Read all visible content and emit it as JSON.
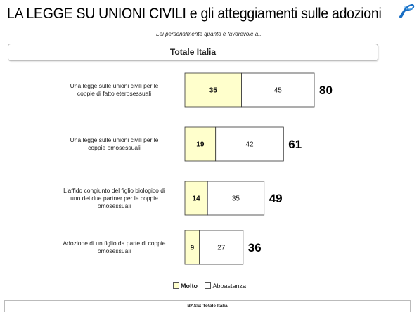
{
  "title": "LA LEGGE SU UNIONI CIVILI e gli atteggiamenti sulle adozioni",
  "subtitle": "Lei personalmente quanto è favorevole a...",
  "header": "Totale Italia",
  "base_note": "BASE: Totale Italia",
  "colors": {
    "molto": "#ffffcc",
    "abbastanza": "#ffffff",
    "border": "#333333"
  },
  "logo_icon": "blue-swirl-logo-icon",
  "chart_data": {
    "type": "bar",
    "orientation": "horizontal",
    "stacked": true,
    "categories": [
      "Una legge sulle unioni civili per le coppie di fatto eterosessuali",
      "Una legge sulle unioni civili per le coppie omosessuali",
      "L'affido congiunto del figlio biologico di uno dei due partner per le coppie omosessuali",
      "Adozione di un figlio da parte di coppie omosessuali"
    ],
    "category_lines": [
      [
        "Una legge sulle unioni civili per le",
        "coppie di fatto eterosessuali"
      ],
      [
        "Una legge sulle unioni civili per le",
        "coppie omosessuali"
      ],
      [
        "L'affido congiunto del figlio biologico di",
        "uno dei due partner per le coppie",
        "omosessuali"
      ],
      [
        "Adozione di un figlio da parte di coppie",
        "omosessuali"
      ]
    ],
    "series": [
      {
        "name": "Molto",
        "values": [
          35,
          19,
          14,
          9
        ]
      },
      {
        "name": "Abbastanza",
        "values": [
          45,
          42,
          35,
          27
        ]
      }
    ],
    "totals": [
      80,
      61,
      49,
      36
    ],
    "legend": [
      "Molto",
      "Abbastanza"
    ],
    "legend_position": "bottom",
    "grid": false
  }
}
